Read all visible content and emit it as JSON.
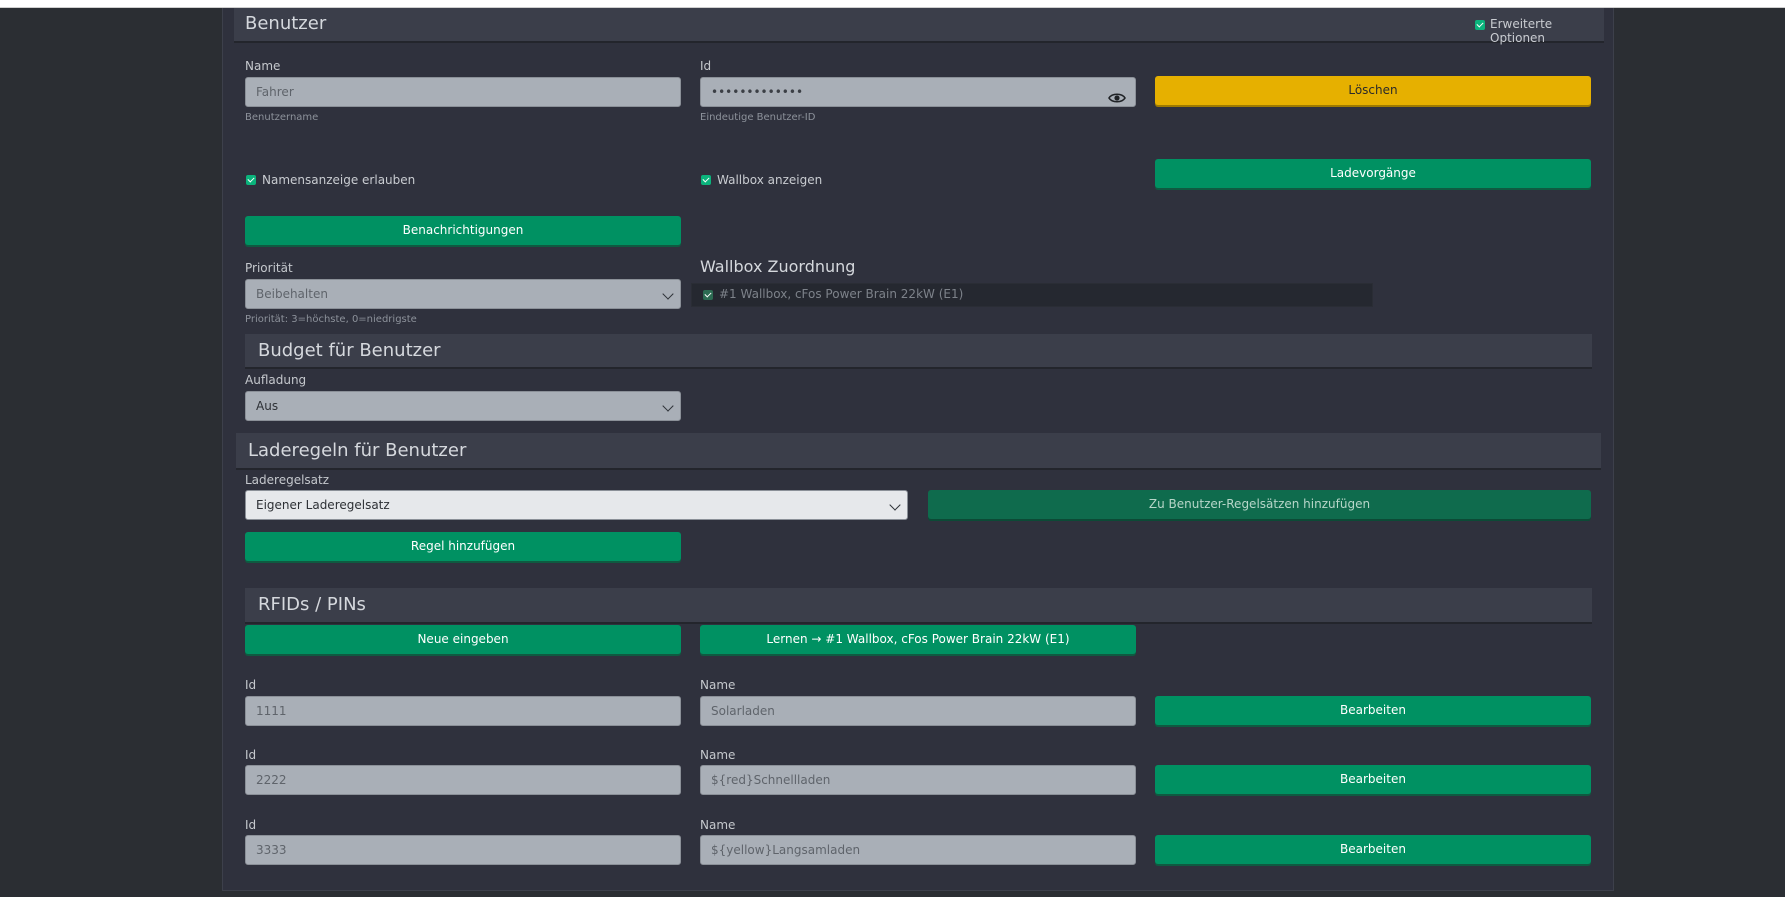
{
  "user_section": {
    "title": "Benutzer",
    "advanced_options_label": "Erweiterte Optionen",
    "advanced_options_checked": true,
    "name_label": "Name",
    "name_placeholder": "Fahrer",
    "name_hint": "Benutzername",
    "id_label": "Id",
    "id_value": "•••••••••••••",
    "id_hint": "Eindeutige Benutzer-ID",
    "delete_label": "Löschen",
    "allow_name_display_label": "Namensanzeige erlauben",
    "allow_name_display_checked": true,
    "show_wallbox_label": "Wallbox anzeigen",
    "show_wallbox_checked": true,
    "charging_sessions_label": "Ladevorgänge",
    "notifications_label": "Benachrichtigungen",
    "priority_label": "Priorität",
    "priority_value": "Beibehalten",
    "priority_hint": "Priorität: 3=höchste, 0=niedrigste",
    "wallbox_assignment_title": "Wallbox Zuordnung",
    "wallbox_assignment_item": "#1 Wallbox, cFos Power Brain 22kW (E1)",
    "wallbox_assignment_checked": true
  },
  "budget_section": {
    "title": "Budget für Benutzer",
    "charge_label": "Aufladung",
    "charge_value": "Aus"
  },
  "rules_section": {
    "title": "Laderegeln für Benutzer",
    "ruleset_label": "Laderegelsatz",
    "ruleset_value": "Eigener Laderegelsatz",
    "add_to_user_rulesets_label": "Zu Benutzer-Regelsätzen hinzufügen",
    "add_rule_label": "Regel hinzufügen"
  },
  "rfid_section": {
    "title": "RFIDs / PINs",
    "new_entry_label": "Neue eingeben",
    "learn_label": "Lernen → #1 Wallbox, cFos Power Brain 22kW (E1)",
    "entries": [
      {
        "id_label": "Id",
        "id_value": "1111",
        "name_label": "Name",
        "name_value": "Solarladen",
        "edit_label": "Bearbeiten"
      },
      {
        "id_label": "Id",
        "id_value": "2222",
        "name_label": "Name",
        "name_value": "${red}Schnellladen",
        "edit_label": "Bearbeiten"
      },
      {
        "id_label": "Id",
        "id_value": "3333",
        "name_label": "Name",
        "name_value": "${yellow}Langsamladen",
        "edit_label": "Bearbeiten"
      }
    ]
  },
  "colors": {
    "accent_green": "#009162",
    "warning_yellow": "#e6b000",
    "panel_bg": "#2f313d",
    "page_bg": "#2b2e33"
  },
  "icons": {
    "visibility": "eye-icon",
    "select_caret": "chevron-down-icon",
    "checkbox": "checkbox-checked-icon"
  }
}
